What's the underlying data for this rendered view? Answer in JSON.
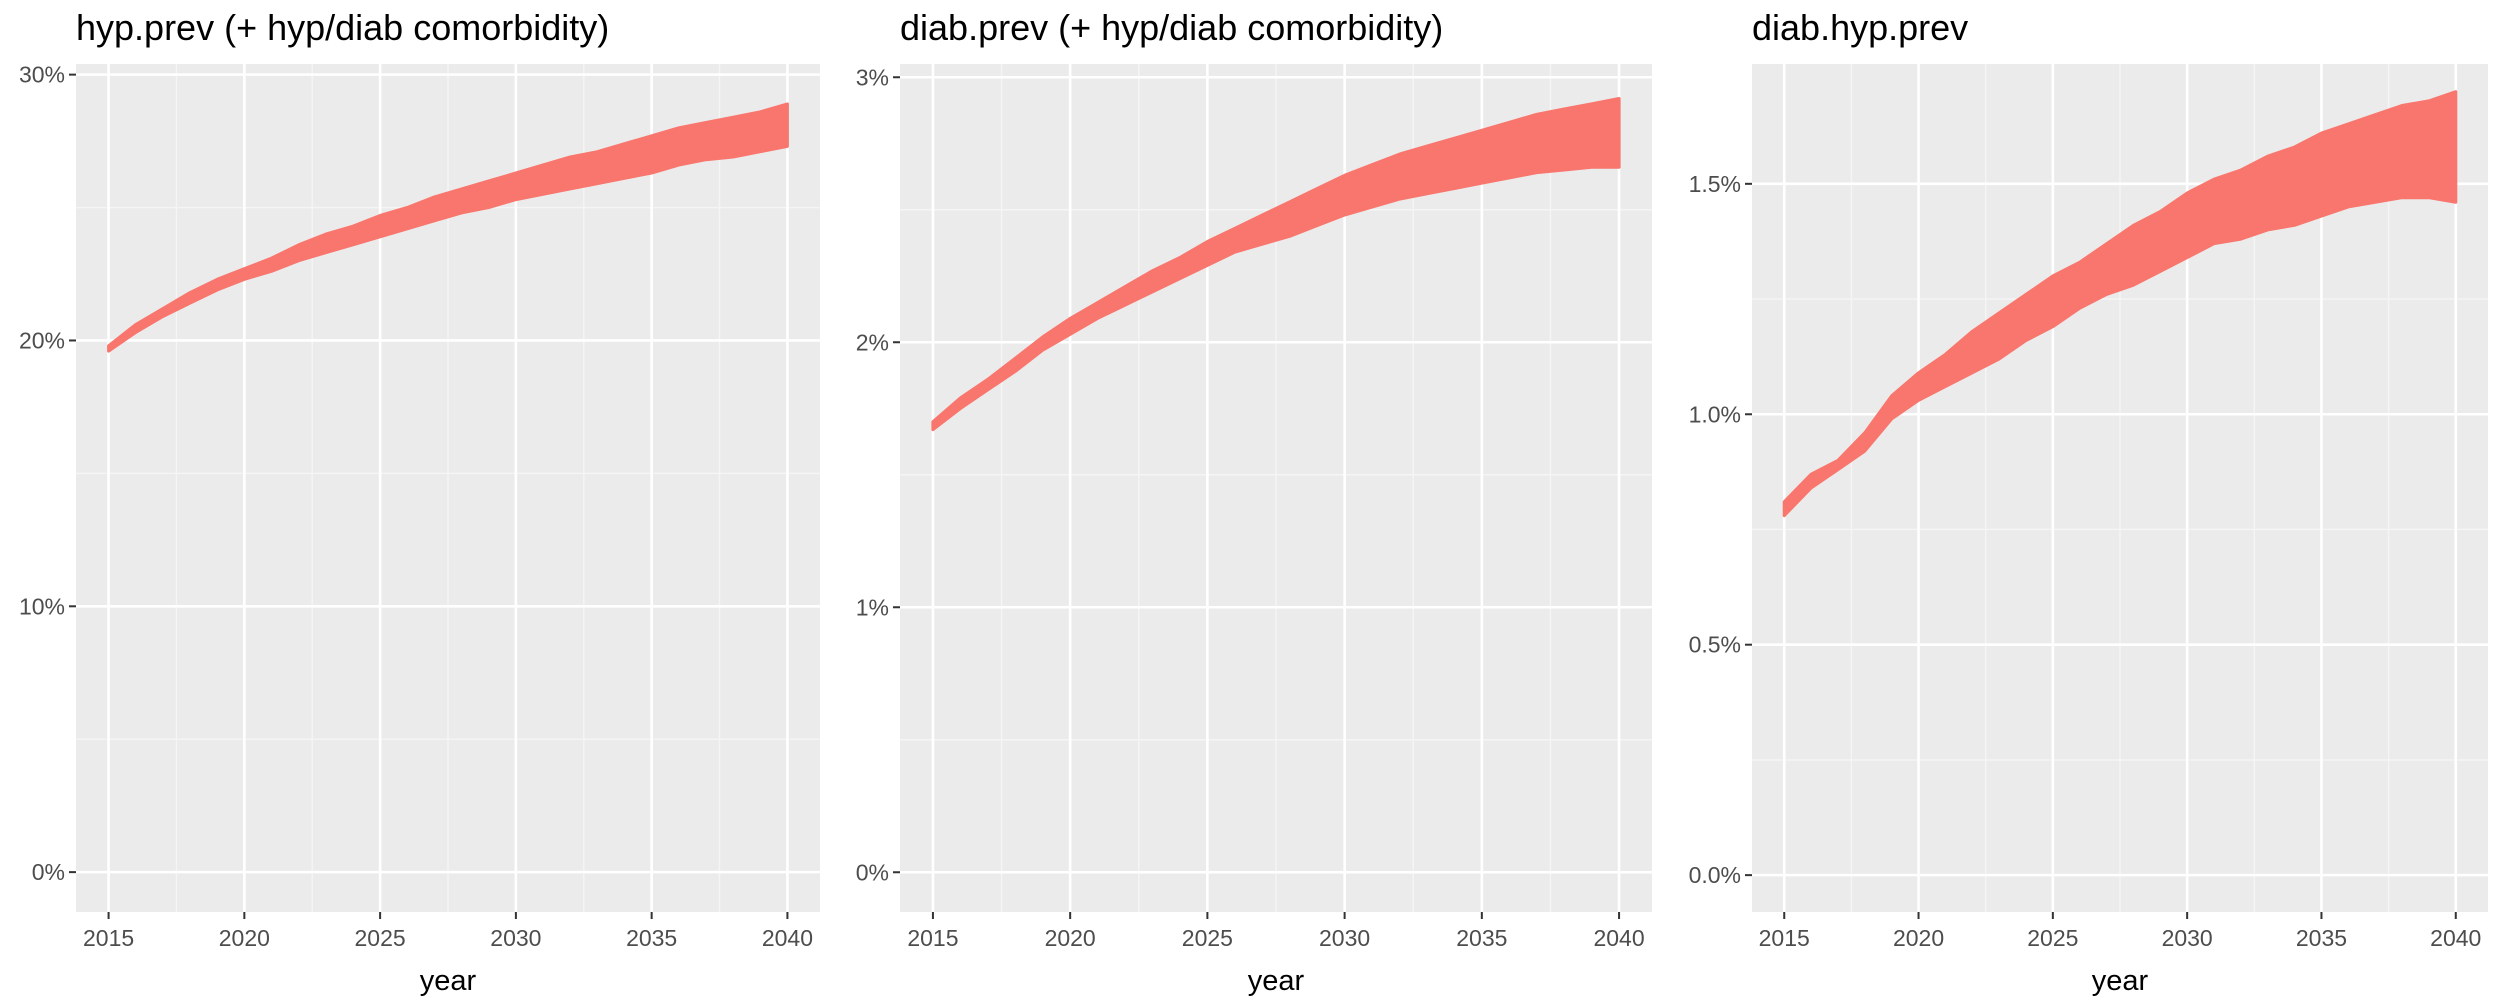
{
  "chart_data": [
    {
      "type": "line",
      "title": "hyp.prev (+ hyp/diab comorbidity)",
      "xlabel": "year",
      "ylabel": "",
      "xlim": [
        2013.8,
        2041.2
      ],
      "ylim": [
        -1.5,
        30.4
      ],
      "x_ticks": [
        2015,
        2020,
        2025,
        2030,
        2035,
        2040
      ],
      "y_ticks": [
        0,
        10,
        20,
        30
      ],
      "y_tick_labels": [
        "0%",
        "10%",
        "20%",
        "30%"
      ],
      "grid": true,
      "line_color": "#F8766D",
      "x": [
        2015,
        2016,
        2017,
        2018,
        2019,
        2020,
        2021,
        2022,
        2023,
        2024,
        2025,
        2026,
        2027,
        2028,
        2029,
        2030,
        2031,
        2032,
        2033,
        2034,
        2035,
        2036,
        2037,
        2038,
        2039,
        2040
      ],
      "band_low": [
        19.6,
        20.3,
        20.9,
        21.4,
        21.9,
        22.3,
        22.6,
        23.0,
        23.3,
        23.6,
        23.9,
        24.2,
        24.5,
        24.8,
        25.0,
        25.3,
        25.5,
        25.7,
        25.9,
        26.1,
        26.3,
        26.6,
        26.8,
        26.9,
        27.1,
        27.3
      ],
      "band_high": [
        19.8,
        20.6,
        21.2,
        21.8,
        22.3,
        22.7,
        23.1,
        23.6,
        24.0,
        24.3,
        24.7,
        25.0,
        25.4,
        25.7,
        26.0,
        26.3,
        26.6,
        26.9,
        27.1,
        27.4,
        27.7,
        28.0,
        28.2,
        28.4,
        28.6,
        28.9
      ]
    },
    {
      "type": "line",
      "title": "diab.prev (+ hyp/diab comorbidity)",
      "xlabel": "year",
      "ylabel": "",
      "xlim": [
        2013.8,
        2041.2
      ],
      "ylim": [
        -0.15,
        3.05
      ],
      "x_ticks": [
        2015,
        2020,
        2025,
        2030,
        2035,
        2040
      ],
      "y_ticks": [
        0,
        1,
        2,
        3
      ],
      "y_tick_labels": [
        "0%",
        "1%",
        "2%",
        "3%"
      ],
      "grid": true,
      "line_color": "#F8766D",
      "x": [
        2015,
        2016,
        2017,
        2018,
        2019,
        2020,
        2021,
        2022,
        2023,
        2024,
        2025,
        2026,
        2027,
        2028,
        2029,
        2030,
        2031,
        2032,
        2033,
        2034,
        2035,
        2036,
        2037,
        2038,
        2039,
        2040
      ],
      "band_low": [
        1.67,
        1.75,
        1.82,
        1.89,
        1.97,
        2.03,
        2.09,
        2.14,
        2.19,
        2.24,
        2.29,
        2.34,
        2.37,
        2.4,
        2.44,
        2.48,
        2.51,
        2.54,
        2.56,
        2.58,
        2.6,
        2.62,
        2.64,
        2.65,
        2.66,
        2.66
      ],
      "band_high": [
        1.7,
        1.79,
        1.86,
        1.94,
        2.02,
        2.09,
        2.15,
        2.21,
        2.27,
        2.32,
        2.38,
        2.43,
        2.48,
        2.53,
        2.58,
        2.63,
        2.67,
        2.71,
        2.74,
        2.77,
        2.8,
        2.83,
        2.86,
        2.88,
        2.9,
        2.92
      ]
    },
    {
      "type": "line",
      "title": "diab.hyp.prev",
      "xlabel": "year",
      "ylabel": "",
      "xlim": [
        2013.8,
        2041.2
      ],
      "ylim": [
        -0.08,
        1.76
      ],
      "x_ticks": [
        2015,
        2020,
        2025,
        2030,
        2035,
        2040
      ],
      "y_ticks": [
        0.0,
        0.5,
        1.0,
        1.5
      ],
      "y_tick_labels": [
        "0.0%",
        "0.5%",
        "1.0%",
        "1.5%"
      ],
      "grid": true,
      "line_color": "#F8766D",
      "x": [
        2015,
        2016,
        2017,
        2018,
        2019,
        2020,
        2021,
        2022,
        2023,
        2024,
        2025,
        2026,
        2027,
        2028,
        2029,
        2030,
        2031,
        2032,
        2033,
        2034,
        2035,
        2036,
        2037,
        2038,
        2039,
        2040
      ],
      "band_low": [
        0.78,
        0.84,
        0.88,
        0.92,
        0.99,
        1.03,
        1.06,
        1.09,
        1.12,
        1.16,
        1.19,
        1.23,
        1.26,
        1.28,
        1.31,
        1.34,
        1.37,
        1.38,
        1.4,
        1.41,
        1.43,
        1.45,
        1.46,
        1.47,
        1.47,
        1.46
      ],
      "band_high": [
        0.81,
        0.87,
        0.9,
        0.96,
        1.04,
        1.09,
        1.13,
        1.18,
        1.22,
        1.26,
        1.3,
        1.33,
        1.37,
        1.41,
        1.44,
        1.48,
        1.51,
        1.53,
        1.56,
        1.58,
        1.61,
        1.63,
        1.65,
        1.67,
        1.68,
        1.7
      ]
    }
  ]
}
